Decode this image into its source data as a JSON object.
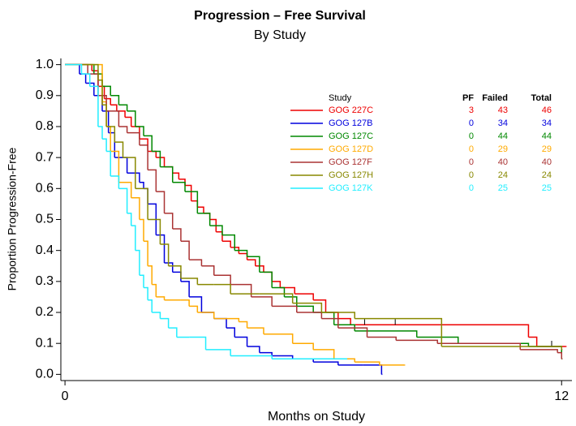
{
  "chart_data": {
    "type": "step",
    "title": "Progression – Free Survival",
    "subtitle": "By Study",
    "x_label": "Months on Study",
    "y_label": "Proportion Progression-Free",
    "xlim": [
      -0.1,
      12.25
    ],
    "ylim": [
      -0.02,
      1.02
    ],
    "xticks": [
      0,
      12
    ],
    "yticks": [
      {
        "value": 0,
        "label": "0.0"
      },
      0.1,
      0.2,
      0.3,
      0.4,
      0.5,
      0.6,
      0.7,
      0.8,
      0.9,
      {
        "value": 1,
        "label": "1.0"
      }
    ],
    "legend_header": [
      "Study",
      "PF",
      "Failed",
      "Total"
    ],
    "series": [
      {
        "name": "GOG 227C",
        "color": "#ee0000",
        "pf": 3,
        "failed": 43,
        "total": 46,
        "x": [
          0,
          0.65,
          0.8,
          0.95,
          1.1,
          1.25,
          1.45,
          1.6,
          1.8,
          2.0,
          2.2,
          2.4,
          2.6,
          2.75,
          2.9,
          3.05,
          3.2,
          3.35,
          3.5,
          3.65,
          3.8,
          4.0,
          4.2,
          4.4,
          4.6,
          4.8,
          5.0,
          5.2,
          5.55,
          6.0,
          6.3,
          6.6,
          6.9,
          11.2,
          11.4,
          12.1
        ],
        "values": [
          1,
          0.98,
          0.93,
          0.89,
          0.87,
          0.85,
          0.83,
          0.8,
          0.76,
          0.72,
          0.7,
          0.67,
          0.65,
          0.63,
          0.61,
          0.56,
          0.54,
          0.52,
          0.5,
          0.46,
          0.43,
          0.41,
          0.39,
          0.37,
          0.35,
          0.33,
          0.3,
          0.28,
          0.26,
          0.24,
          0.2,
          0.18,
          0.16,
          0.12,
          0.09,
          0.09
        ],
        "censored": {
          "x": [
            7.24,
            7.98,
            11.76
          ],
          "values": [
            0.16,
            0.16,
            0.09
          ]
        }
      },
      {
        "name": "GOG 127B",
        "color": "#0000dd",
        "pf": 0,
        "failed": 34,
        "total": 34,
        "x": [
          0,
          0.35,
          0.5,
          0.7,
          0.9,
          1.05,
          1.2,
          1.5,
          1.8,
          1.9,
          2.0,
          2.2,
          2.4,
          2.6,
          2.8,
          3.0,
          3.3,
          3.6,
          3.9,
          4.1,
          4.4,
          4.7,
          5.0,
          5.5,
          6.0,
          6.6,
          7.2,
          7.65
        ],
        "values": [
          1,
          0.97,
          0.94,
          0.9,
          0.85,
          0.78,
          0.7,
          0.65,
          0.62,
          0.6,
          0.55,
          0.45,
          0.36,
          0.33,
          0.3,
          0.25,
          0.2,
          0.18,
          0.15,
          0.12,
          0.09,
          0.07,
          0.06,
          0.05,
          0.04,
          0.03,
          0.03,
          0
        ]
      },
      {
        "name": "GOG 127C",
        "color": "#008800",
        "pf": 0,
        "failed": 44,
        "total": 44,
        "x": [
          0,
          0.7,
          0.9,
          1.1,
          1.3,
          1.5,
          1.7,
          1.9,
          2.1,
          2.3,
          2.6,
          2.9,
          3.2,
          3.5,
          3.8,
          4.1,
          4.4,
          4.7,
          5.0,
          5.3,
          5.6,
          6.0,
          6.5,
          7.0,
          8.5,
          9.5,
          11.2,
          12.0
        ],
        "values": [
          1,
          0.97,
          0.93,
          0.9,
          0.87,
          0.85,
          0.8,
          0.77,
          0.72,
          0.67,
          0.62,
          0.59,
          0.52,
          0.48,
          0.45,
          0.4,
          0.38,
          0.33,
          0.28,
          0.25,
          0.22,
          0.2,
          0.16,
          0.14,
          0.12,
          0.1,
          0.09,
          0.05
        ]
      },
      {
        "name": "GOG 127D",
        "color": "#ffaa00",
        "pf": 0,
        "failed": 29,
        "total": 29,
        "x": [
          0,
          0.9,
          1.0,
          1.1,
          1.3,
          1.6,
          1.8,
          1.9,
          2.0,
          2.1,
          2.2,
          2.4,
          2.8,
          3.0,
          3.2,
          3.6,
          4.2,
          4.4,
          4.8,
          5.5,
          6.0,
          6.5,
          7.0,
          7.6,
          8.2
        ],
        "values": [
          1,
          0.88,
          0.8,
          0.72,
          0.62,
          0.57,
          0.5,
          0.43,
          0.35,
          0.29,
          0.25,
          0.24,
          0.24,
          0.22,
          0.2,
          0.18,
          0.17,
          0.15,
          0.13,
          0.1,
          0.08,
          0.05,
          0.04,
          0.03,
          0.03
        ]
      },
      {
        "name": "GOG 127F",
        "color": "#aa3333",
        "pf": 0,
        "failed": 40,
        "total": 40,
        "x": [
          0,
          0.55,
          0.8,
          1.0,
          1.3,
          1.5,
          1.8,
          2.0,
          2.2,
          2.4,
          2.6,
          2.8,
          3.0,
          3.3,
          3.6,
          4.0,
          4.5,
          5.0,
          5.6,
          6.2,
          6.6,
          7.3,
          8.0,
          9.0,
          11.0,
          11.9,
          12.0
        ],
        "values": [
          1,
          0.97,
          0.9,
          0.85,
          0.8,
          0.78,
          0.74,
          0.66,
          0.59,
          0.52,
          0.47,
          0.43,
          0.37,
          0.35,
          0.32,
          0.29,
          0.25,
          0.22,
          0.2,
          0.18,
          0.15,
          0.12,
          0.11,
          0.1,
          0.08,
          0.07,
          0.05
        ]
      },
      {
        "name": "GOG 127H",
        "color": "#888800",
        "pf": 0,
        "failed": 24,
        "total": 24,
        "x": [
          0,
          0.8,
          0.9,
          1.0,
          1.2,
          1.4,
          1.7,
          2.0,
          2.3,
          2.5,
          2.8,
          3.2,
          3.6,
          4.0,
          4.7,
          5.5,
          6.2,
          7.0,
          9.1,
          12.0
        ],
        "values": [
          1,
          0.95,
          0.87,
          0.8,
          0.75,
          0.7,
          0.6,
          0.5,
          0.42,
          0.35,
          0.31,
          0.29,
          0.29,
          0.26,
          0.26,
          0.23,
          0.2,
          0.18,
          0.09,
          0.08
        ]
      },
      {
        "name": "GOG 127K",
        "color": "#22eeff",
        "pf": 0,
        "failed": 25,
        "total": 25,
        "x": [
          0,
          0.4,
          0.6,
          0.8,
          0.9,
          1.0,
          1.1,
          1.3,
          1.5,
          1.6,
          1.7,
          1.8,
          1.9,
          2.0,
          2.1,
          2.3,
          2.5,
          2.7,
          3.0,
          3.4,
          4.0,
          5.0,
          6.8
        ],
        "values": [
          1,
          0.97,
          0.93,
          0.8,
          0.76,
          0.72,
          0.64,
          0.6,
          0.52,
          0.48,
          0.4,
          0.32,
          0.28,
          0.24,
          0.2,
          0.18,
          0.15,
          0.12,
          0.12,
          0.08,
          0.06,
          0.05,
          0.05
        ]
      }
    ]
  }
}
